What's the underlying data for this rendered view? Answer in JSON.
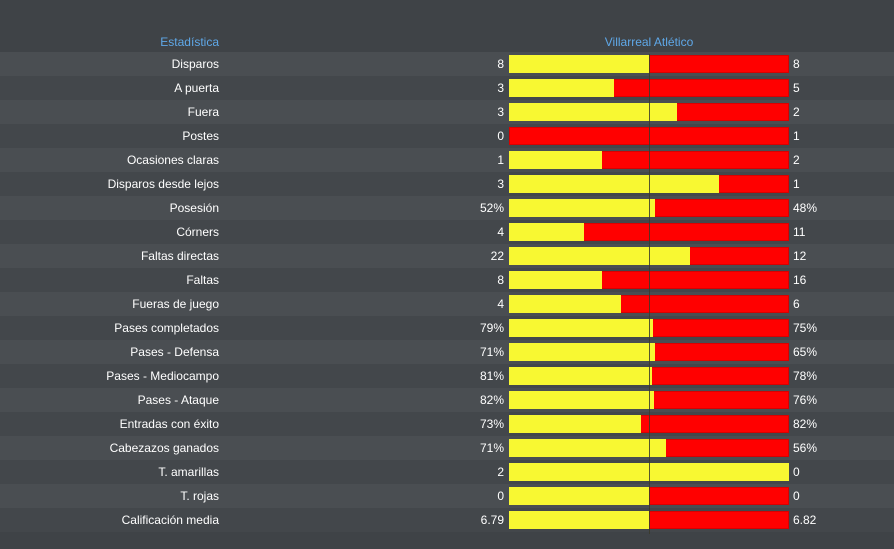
{
  "header": {
    "stat_label": "Estadística",
    "teams_label": "Villarreal Atlético"
  },
  "colors": {
    "home": "#f8f832",
    "away": "#ff0000",
    "header_text": "#5fa8e8"
  },
  "stats": [
    {
      "label": "Disparos",
      "home": "8",
      "away": "8",
      "home_share": 0.5
    },
    {
      "label": "A puerta",
      "home": "3",
      "away": "5",
      "home_share": 0.375
    },
    {
      "label": "Fuera",
      "home": "3",
      "away": "2",
      "home_share": 0.6
    },
    {
      "label": "Postes",
      "home": "0",
      "away": "1",
      "home_share": 0.0
    },
    {
      "label": "Ocasiones claras",
      "home": "1",
      "away": "2",
      "home_share": 0.333
    },
    {
      "label": "Disparos desde lejos",
      "home": "3",
      "away": "1",
      "home_share": 0.75
    },
    {
      "label": "Posesión",
      "home": "52%",
      "away": "48%",
      "home_share": 0.52
    },
    {
      "label": "Córners",
      "home": "4",
      "away": "11",
      "home_share": 0.267
    },
    {
      "label": "Faltas directas",
      "home": "22",
      "away": "12",
      "home_share": 0.647
    },
    {
      "label": "Faltas",
      "home": "8",
      "away": "16",
      "home_share": 0.333
    },
    {
      "label": "Fueras de juego",
      "home": "4",
      "away": "6",
      "home_share": 0.4
    },
    {
      "label": "Pases completados",
      "home": "79%",
      "away": "75%",
      "home_share": 0.513
    },
    {
      "label": "Pases - Defensa",
      "home": "71%",
      "away": "65%",
      "home_share": 0.522
    },
    {
      "label": "Pases - Mediocampo",
      "home": "81%",
      "away": "78%",
      "home_share": 0.509
    },
    {
      "label": "Pases - Ataque",
      "home": "82%",
      "away": "76%",
      "home_share": 0.519
    },
    {
      "label": "Entradas con éxito",
      "home": "73%",
      "away": "82%",
      "home_share": 0.471
    },
    {
      "label": "Cabezazos ganados",
      "home": "71%",
      "away": "56%",
      "home_share": 0.559
    },
    {
      "label": "T. amarillas",
      "home": "2",
      "away": "0",
      "home_share": 1.0
    },
    {
      "label": "T. rojas",
      "home": "0",
      "away": "0",
      "home_share": 0.5
    },
    {
      "label": "Calificación media",
      "home": "6.79",
      "away": "6.82",
      "home_share": 0.499
    }
  ]
}
